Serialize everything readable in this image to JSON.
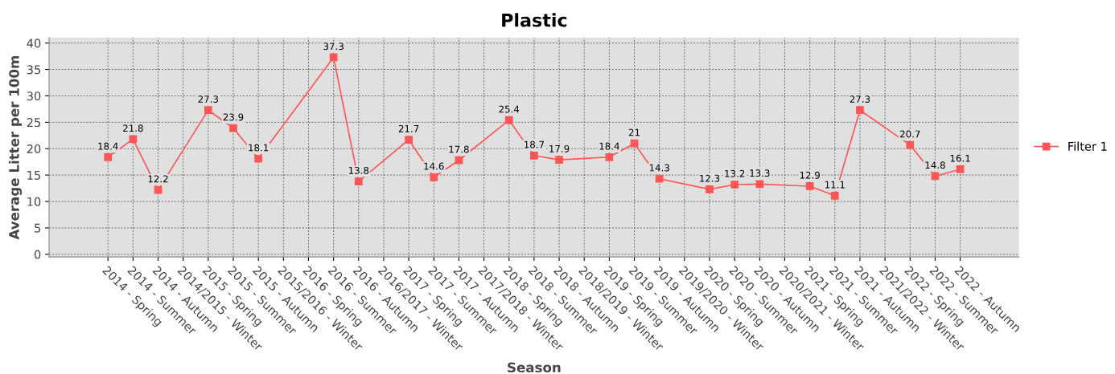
{
  "chart_data": {
    "type": "line",
    "title": "Plastic",
    "xlabel": "Season",
    "ylabel": "Average Litter per 100m",
    "categories": [
      "2014 - Spring",
      "2014 - Summer",
      "2014 - Autumn",
      "2014/2015 - Winter",
      "2015 - Spring",
      "2015 - Summer",
      "2015 - Autumn",
      "2015/2016 - Winter",
      "2016 - Spring",
      "2016 - Summer",
      "2016 - Autumn",
      "2016/2017 - Winter",
      "2017 - Spring",
      "2017 - Summer",
      "2017 - Autumn",
      "2017/2018 - Winter",
      "2018 - Spring",
      "2018 - Summer",
      "2018 - Autumn",
      "2018/2019 - Winter",
      "2019 - Spring",
      "2019 - Summer",
      "2019 - Autumn",
      "2019/2020 - Winter",
      "2020 - Spring",
      "2020 - Summer",
      "2020 - Autumn",
      "2020/2021 - Winter",
      "2021 - Spring",
      "2021 - Summer",
      "2021 - Autumn",
      "2021/2022 - Winter",
      "2022 - Spring",
      "2022 - Summer",
      "2022 - Autumn"
    ],
    "series": [
      {
        "name": "Filter 1",
        "color": "#ff5555",
        "values": [
          18.4,
          21.8,
          12.2,
          null,
          27.3,
          23.9,
          18.1,
          null,
          null,
          37.3,
          13.8,
          null,
          21.7,
          14.6,
          17.8,
          null,
          25.4,
          18.7,
          17.9,
          null,
          18.4,
          21,
          14.3,
          null,
          12.3,
          13.2,
          13.3,
          null,
          12.9,
          11.1,
          27.3,
          null,
          20.7,
          14.8,
          16.1
        ]
      }
    ],
    "ylim": [
      -0.5,
      41
    ],
    "yticks": [
      0,
      5,
      10,
      15,
      20,
      25,
      30,
      35,
      40
    ],
    "grid": true,
    "legend": "right",
    "marker": "square",
    "line_style": "solid",
    "data_labels": true
  }
}
